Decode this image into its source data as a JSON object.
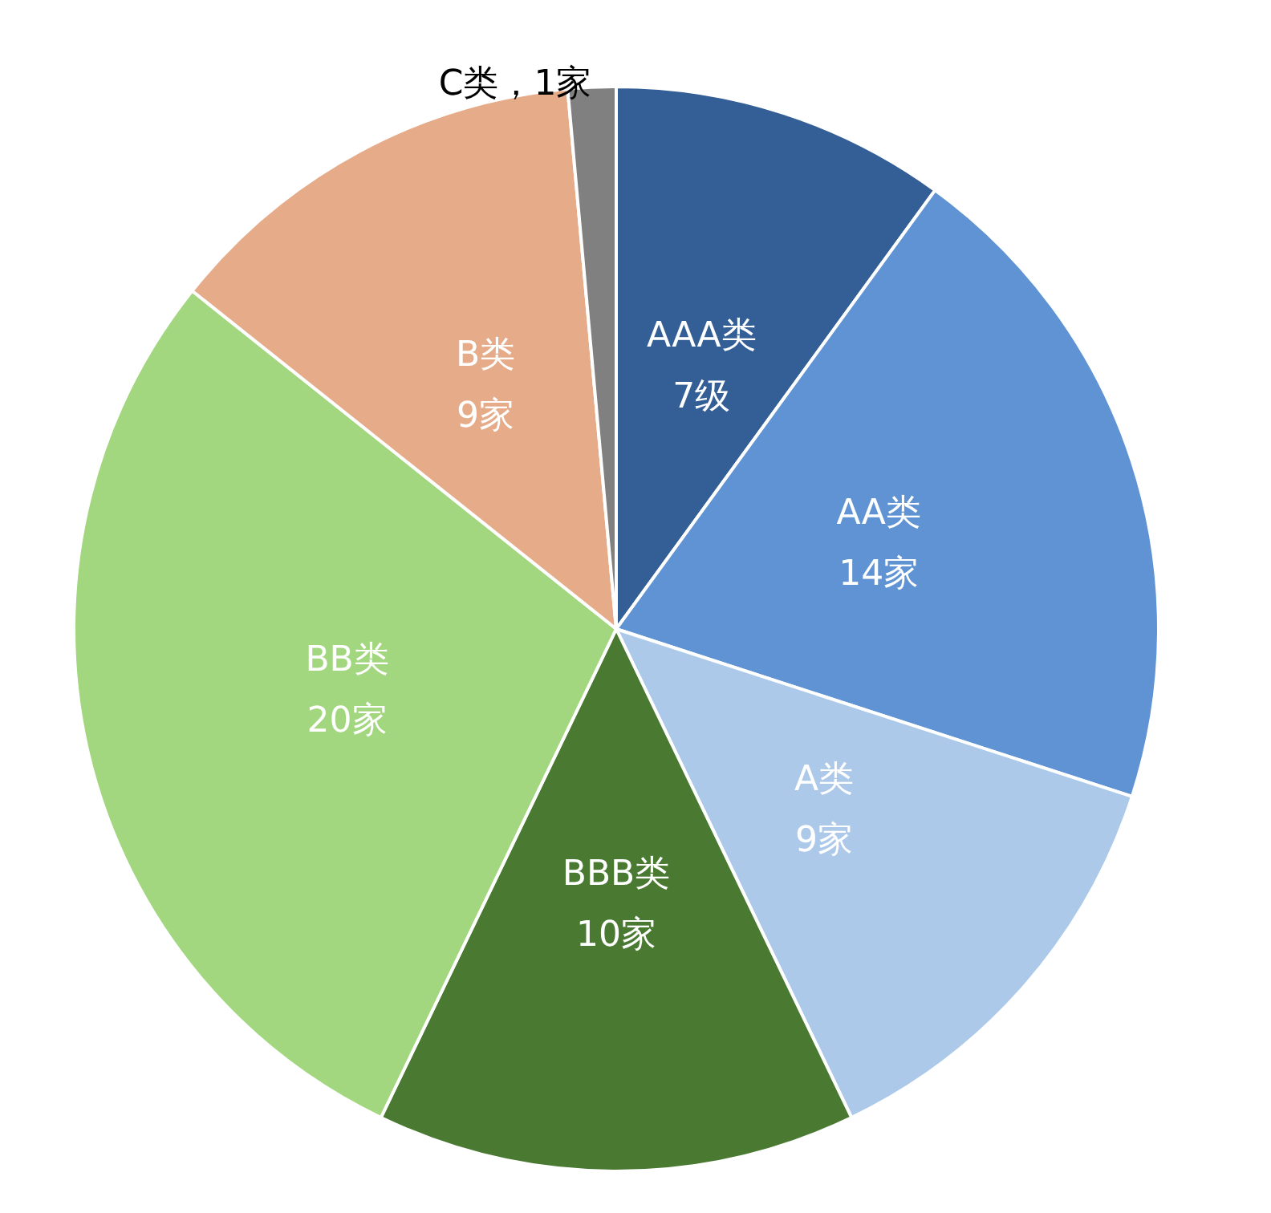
{
  "chart_data": {
    "type": "pie",
    "categories": [
      "AAA类",
      "AA类",
      "A类",
      "BBB类",
      "BB类",
      "B类",
      "C类"
    ],
    "values": [
      7,
      14,
      9,
      10,
      20,
      9,
      1
    ],
    "value_labels": [
      "7级",
      "14家",
      "9家",
      "10家",
      "20家",
      "9家",
      "1家"
    ],
    "colors": [
      "#335f96",
      "#5f93d3",
      "#adc9e9",
      "#4a7a32",
      "#a2d67f",
      "#e6ab88",
      "#808080"
    ],
    "legend": false
  }
}
